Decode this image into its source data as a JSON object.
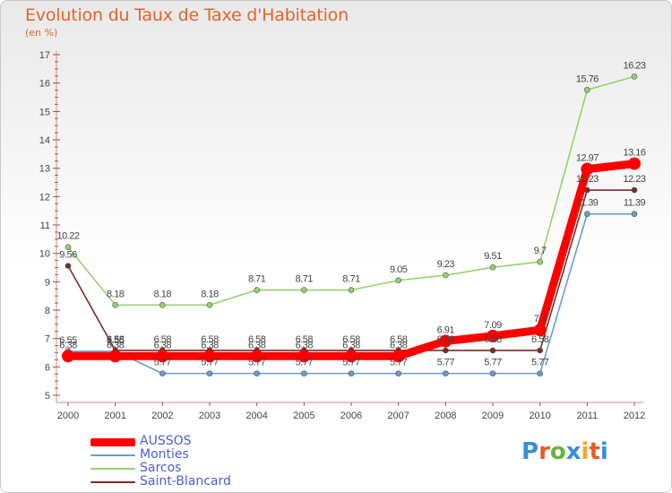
{
  "title": "Evolution du Taux de Taxe d'Habitation",
  "unit": "(en %)",
  "logo": {
    "text": "Proxiti",
    "colors": [
      "#3a8fd6",
      "#e85a2a",
      "#6ab33c",
      "#3a8fd6",
      "#f2a81d",
      "#e85a2a",
      "#3a8fd6"
    ]
  },
  "chart_data": {
    "type": "line",
    "title": "Evolution du Taux de Taxe d'Habitation",
    "ylabel": "(en %)",
    "xlabel": "",
    "categories": [
      "2000",
      "2001",
      "2002",
      "2003",
      "2004",
      "2005",
      "2006",
      "2007",
      "2008",
      "2009",
      "2010",
      "2011",
      "2012"
    ],
    "ylim": [
      5,
      17
    ],
    "yticks": [
      5,
      6,
      7,
      8,
      9,
      10,
      11,
      12,
      13,
      14,
      15,
      16,
      17
    ],
    "grid": false,
    "legend": "bottom-left",
    "series": [
      {
        "name": "AUSSOS",
        "color": "#ff0000",
        "values": [
          6.38,
          6.38,
          6.38,
          6.38,
          6.38,
          6.38,
          6.38,
          6.38,
          6.91,
          7.09,
          7.3,
          12.97,
          13.16
        ],
        "labels": [
          "6.38",
          "6.38",
          "6.38",
          "6.38",
          "6.38",
          "6.38",
          "6.38",
          "6.38",
          "6.91",
          "7.09",
          "7.3",
          "12.97",
          "13.16"
        ]
      },
      {
        "name": "Monties",
        "color": "#6b9dc9",
        "values": [
          6.55,
          6.55,
          5.77,
          5.77,
          5.77,
          5.77,
          5.77,
          5.77,
          5.77,
          5.77,
          5.77,
          11.39,
          11.39
        ],
        "labels": [
          "6.55",
          "6.55",
          "5.77",
          "5.77",
          "5.77",
          "5.77",
          "5.77",
          "5.77",
          "5.77",
          "5.77",
          "5.77",
          "11.39",
          "11.39"
        ]
      },
      {
        "name": "Sarcos",
        "color": "#93d36b",
        "values": [
          10.22,
          8.18,
          8.18,
          8.18,
          8.71,
          8.71,
          8.71,
          9.05,
          9.23,
          9.51,
          9.7,
          15.76,
          16.23
        ],
        "labels": [
          "10.22",
          "8.18",
          "8.18",
          "8.18",
          "8.71",
          "8.71",
          "8.71",
          "9.05",
          "9.23",
          "9.51",
          "9.7",
          "15.76",
          "16.23"
        ]
      },
      {
        "name": "Saint-Blancard",
        "color": "#7a2a2a",
        "values": [
          9.56,
          6.58,
          6.58,
          6.58,
          6.58,
          6.58,
          6.58,
          6.58,
          6.58,
          6.58,
          6.58,
          12.23,
          12.23
        ],
        "labels": [
          "9.56",
          "6.58",
          "6.58",
          "6.58",
          "6.58",
          "6.58",
          "6.58",
          "6.58",
          "6.58",
          "6.58",
          "6.58",
          "12.23",
          "12.23"
        ]
      }
    ]
  }
}
